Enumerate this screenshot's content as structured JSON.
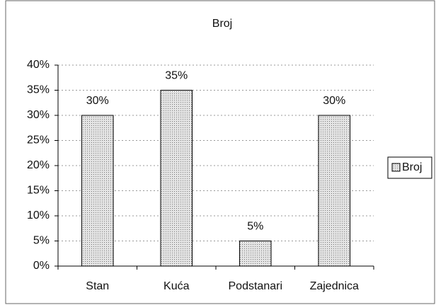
{
  "chart_data": {
    "type": "bar",
    "title": "Broj",
    "categories": [
      "Stan",
      "Kuća",
      "Podstanari",
      "Zajednica"
    ],
    "series": [
      {
        "name": "Broj",
        "color": "#c8c8c8",
        "values": [
          30,
          35,
          5,
          30
        ],
        "value_labels": [
          "30%",
          "35%",
          "5%",
          "30%"
        ]
      }
    ],
    "ylim": [
      0,
      40
    ],
    "yticks": [
      {
        "value": 0,
        "label": "0%"
      },
      {
        "value": 5,
        "label": "5%"
      },
      {
        "value": 10,
        "label": "10%"
      },
      {
        "value": 15,
        "label": "15%"
      },
      {
        "value": 20,
        "label": "20%"
      },
      {
        "value": 25,
        "label": "25%"
      },
      {
        "value": 30,
        "label": "30%"
      },
      {
        "value": 35,
        "label": "35%"
      },
      {
        "value": 40,
        "label": "40%"
      }
    ],
    "grid": true,
    "legend": "right"
  }
}
